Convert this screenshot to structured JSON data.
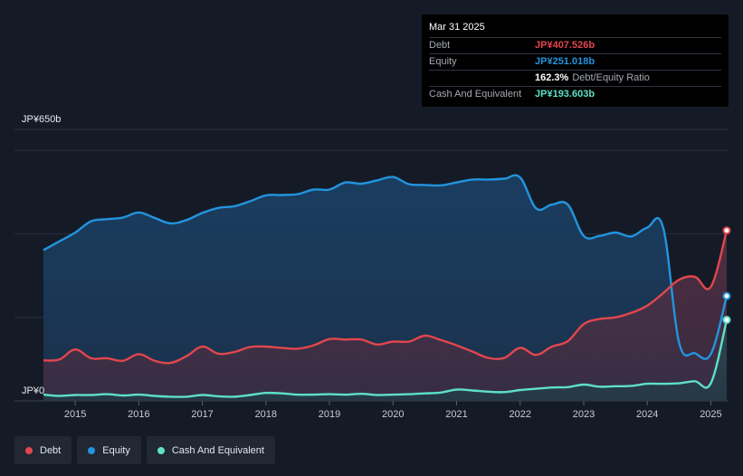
{
  "tooltip": {
    "date": "Mar 31 2025",
    "debt_label": "Debt",
    "debt_value": "JP¥407.526b",
    "equity_label": "Equity",
    "equity_value": "JP¥251.018b",
    "ratio_value": "162.3%",
    "ratio_label": "Debt/Equity Ratio",
    "cash_label": "Cash And Equivalent",
    "cash_value": "JP¥193.603b"
  },
  "legend": {
    "debt": "Debt",
    "equity": "Equity",
    "cash": "Cash And Equivalent"
  },
  "colors": {
    "debt": "#e2464d",
    "equity": "#2394df",
    "cash": "#5ee0c6",
    "background": "#151b26"
  },
  "chart_data": {
    "type": "area",
    "ylim": [
      0,
      650
    ],
    "y_top_label": "JP¥650b",
    "y_bottom_label": "JP¥0",
    "x_ticks": [
      "2015",
      "2016",
      "2017",
      "2018",
      "2019",
      "2020",
      "2021",
      "2022",
      "2023",
      "2024",
      "2025"
    ],
    "x_tick_years": [
      2015,
      2016,
      2017,
      2018,
      2019,
      2020,
      2021,
      2022,
      2023,
      2024,
      2025
    ],
    "xlim": [
      2014.45,
      2025.3
    ],
    "series": [
      {
        "name": "Equity",
        "points": [
          [
            2014.5,
            361
          ],
          [
            2014.75,
            382
          ],
          [
            2015.0,
            403
          ],
          [
            2015.25,
            430
          ],
          [
            2015.5,
            435
          ],
          [
            2015.75,
            439
          ],
          [
            2016.0,
            451
          ],
          [
            2016.25,
            438
          ],
          [
            2016.5,
            425
          ],
          [
            2016.75,
            433
          ],
          [
            2017.0,
            450
          ],
          [
            2017.25,
            462
          ],
          [
            2017.5,
            466
          ],
          [
            2017.75,
            478
          ],
          [
            2018.0,
            492
          ],
          [
            2018.25,
            493
          ],
          [
            2018.5,
            495
          ],
          [
            2018.75,
            506
          ],
          [
            2019.0,
            506
          ],
          [
            2019.25,
            523
          ],
          [
            2019.5,
            520
          ],
          [
            2019.75,
            528
          ],
          [
            2020.0,
            536
          ],
          [
            2020.25,
            519
          ],
          [
            2020.5,
            517
          ],
          [
            2020.75,
            516
          ],
          [
            2021.0,
            523
          ],
          [
            2021.25,
            530
          ],
          [
            2021.5,
            530
          ],
          [
            2021.75,
            532
          ],
          [
            2022.0,
            535
          ],
          [
            2022.25,
            461
          ],
          [
            2022.5,
            470
          ],
          [
            2022.75,
            470
          ],
          [
            2023.0,
            395
          ],
          [
            2023.25,
            395
          ],
          [
            2023.5,
            403
          ],
          [
            2023.75,
            394
          ],
          [
            2024.0,
            415
          ],
          [
            2024.25,
            415
          ],
          [
            2024.5,
            140
          ],
          [
            2024.75,
            114
          ],
          [
            2025.0,
            112
          ],
          [
            2025.25,
            251
          ]
        ]
      },
      {
        "name": "Debt",
        "points": [
          [
            2014.5,
            97
          ],
          [
            2014.75,
            99
          ],
          [
            2015.0,
            123
          ],
          [
            2015.25,
            102
          ],
          [
            2015.5,
            102
          ],
          [
            2015.75,
            96
          ],
          [
            2016.0,
            112
          ],
          [
            2016.25,
            96
          ],
          [
            2016.5,
            91
          ],
          [
            2016.75,
            107
          ],
          [
            2017.0,
            130
          ],
          [
            2017.25,
            113
          ],
          [
            2017.5,
            117
          ],
          [
            2017.75,
            129
          ],
          [
            2018.0,
            130
          ],
          [
            2018.25,
            127
          ],
          [
            2018.5,
            125
          ],
          [
            2018.75,
            133
          ],
          [
            2019.0,
            148
          ],
          [
            2019.25,
            147
          ],
          [
            2019.5,
            147
          ],
          [
            2019.75,
            135
          ],
          [
            2020.0,
            142
          ],
          [
            2020.25,
            142
          ],
          [
            2020.5,
            156
          ],
          [
            2020.75,
            146
          ],
          [
            2021.0,
            133
          ],
          [
            2021.25,
            118
          ],
          [
            2021.5,
            103
          ],
          [
            2021.75,
            103
          ],
          [
            2022.0,
            127
          ],
          [
            2022.25,
            110
          ],
          [
            2022.5,
            130
          ],
          [
            2022.75,
            143
          ],
          [
            2023.0,
            184
          ],
          [
            2023.25,
            196
          ],
          [
            2023.5,
            200
          ],
          [
            2023.75,
            211
          ],
          [
            2024.0,
            228
          ],
          [
            2024.25,
            258
          ],
          [
            2024.5,
            290
          ],
          [
            2024.75,
            297
          ],
          [
            2025.0,
            273
          ],
          [
            2025.25,
            408
          ]
        ]
      },
      {
        "name": "Cash And Equivalent",
        "points": [
          [
            2014.5,
            15
          ],
          [
            2014.75,
            12
          ],
          [
            2015.0,
            14
          ],
          [
            2015.25,
            14
          ],
          [
            2015.5,
            16
          ],
          [
            2015.75,
            13
          ],
          [
            2016.0,
            15
          ],
          [
            2016.25,
            12
          ],
          [
            2016.5,
            10
          ],
          [
            2016.75,
            10
          ],
          [
            2017.0,
            14
          ],
          [
            2017.25,
            11
          ],
          [
            2017.5,
            10
          ],
          [
            2017.75,
            14
          ],
          [
            2018.0,
            19
          ],
          [
            2018.25,
            18
          ],
          [
            2018.5,
            15
          ],
          [
            2018.75,
            15
          ],
          [
            2019.0,
            16
          ],
          [
            2019.25,
            15
          ],
          [
            2019.5,
            17
          ],
          [
            2019.75,
            14
          ],
          [
            2020.0,
            15
          ],
          [
            2020.25,
            16
          ],
          [
            2020.5,
            18
          ],
          [
            2020.75,
            20
          ],
          [
            2021.0,
            27
          ],
          [
            2021.25,
            25
          ],
          [
            2021.5,
            22
          ],
          [
            2021.75,
            21
          ],
          [
            2022.0,
            26
          ],
          [
            2022.25,
            29
          ],
          [
            2022.5,
            32
          ],
          [
            2022.75,
            33
          ],
          [
            2023.0,
            39
          ],
          [
            2023.25,
            34
          ],
          [
            2023.5,
            35
          ],
          [
            2023.75,
            36
          ],
          [
            2024.0,
            41
          ],
          [
            2024.25,
            41
          ],
          [
            2024.5,
            42
          ],
          [
            2024.75,
            47
          ],
          [
            2025.0,
            42
          ],
          [
            2025.25,
            194
          ]
        ]
      }
    ]
  }
}
